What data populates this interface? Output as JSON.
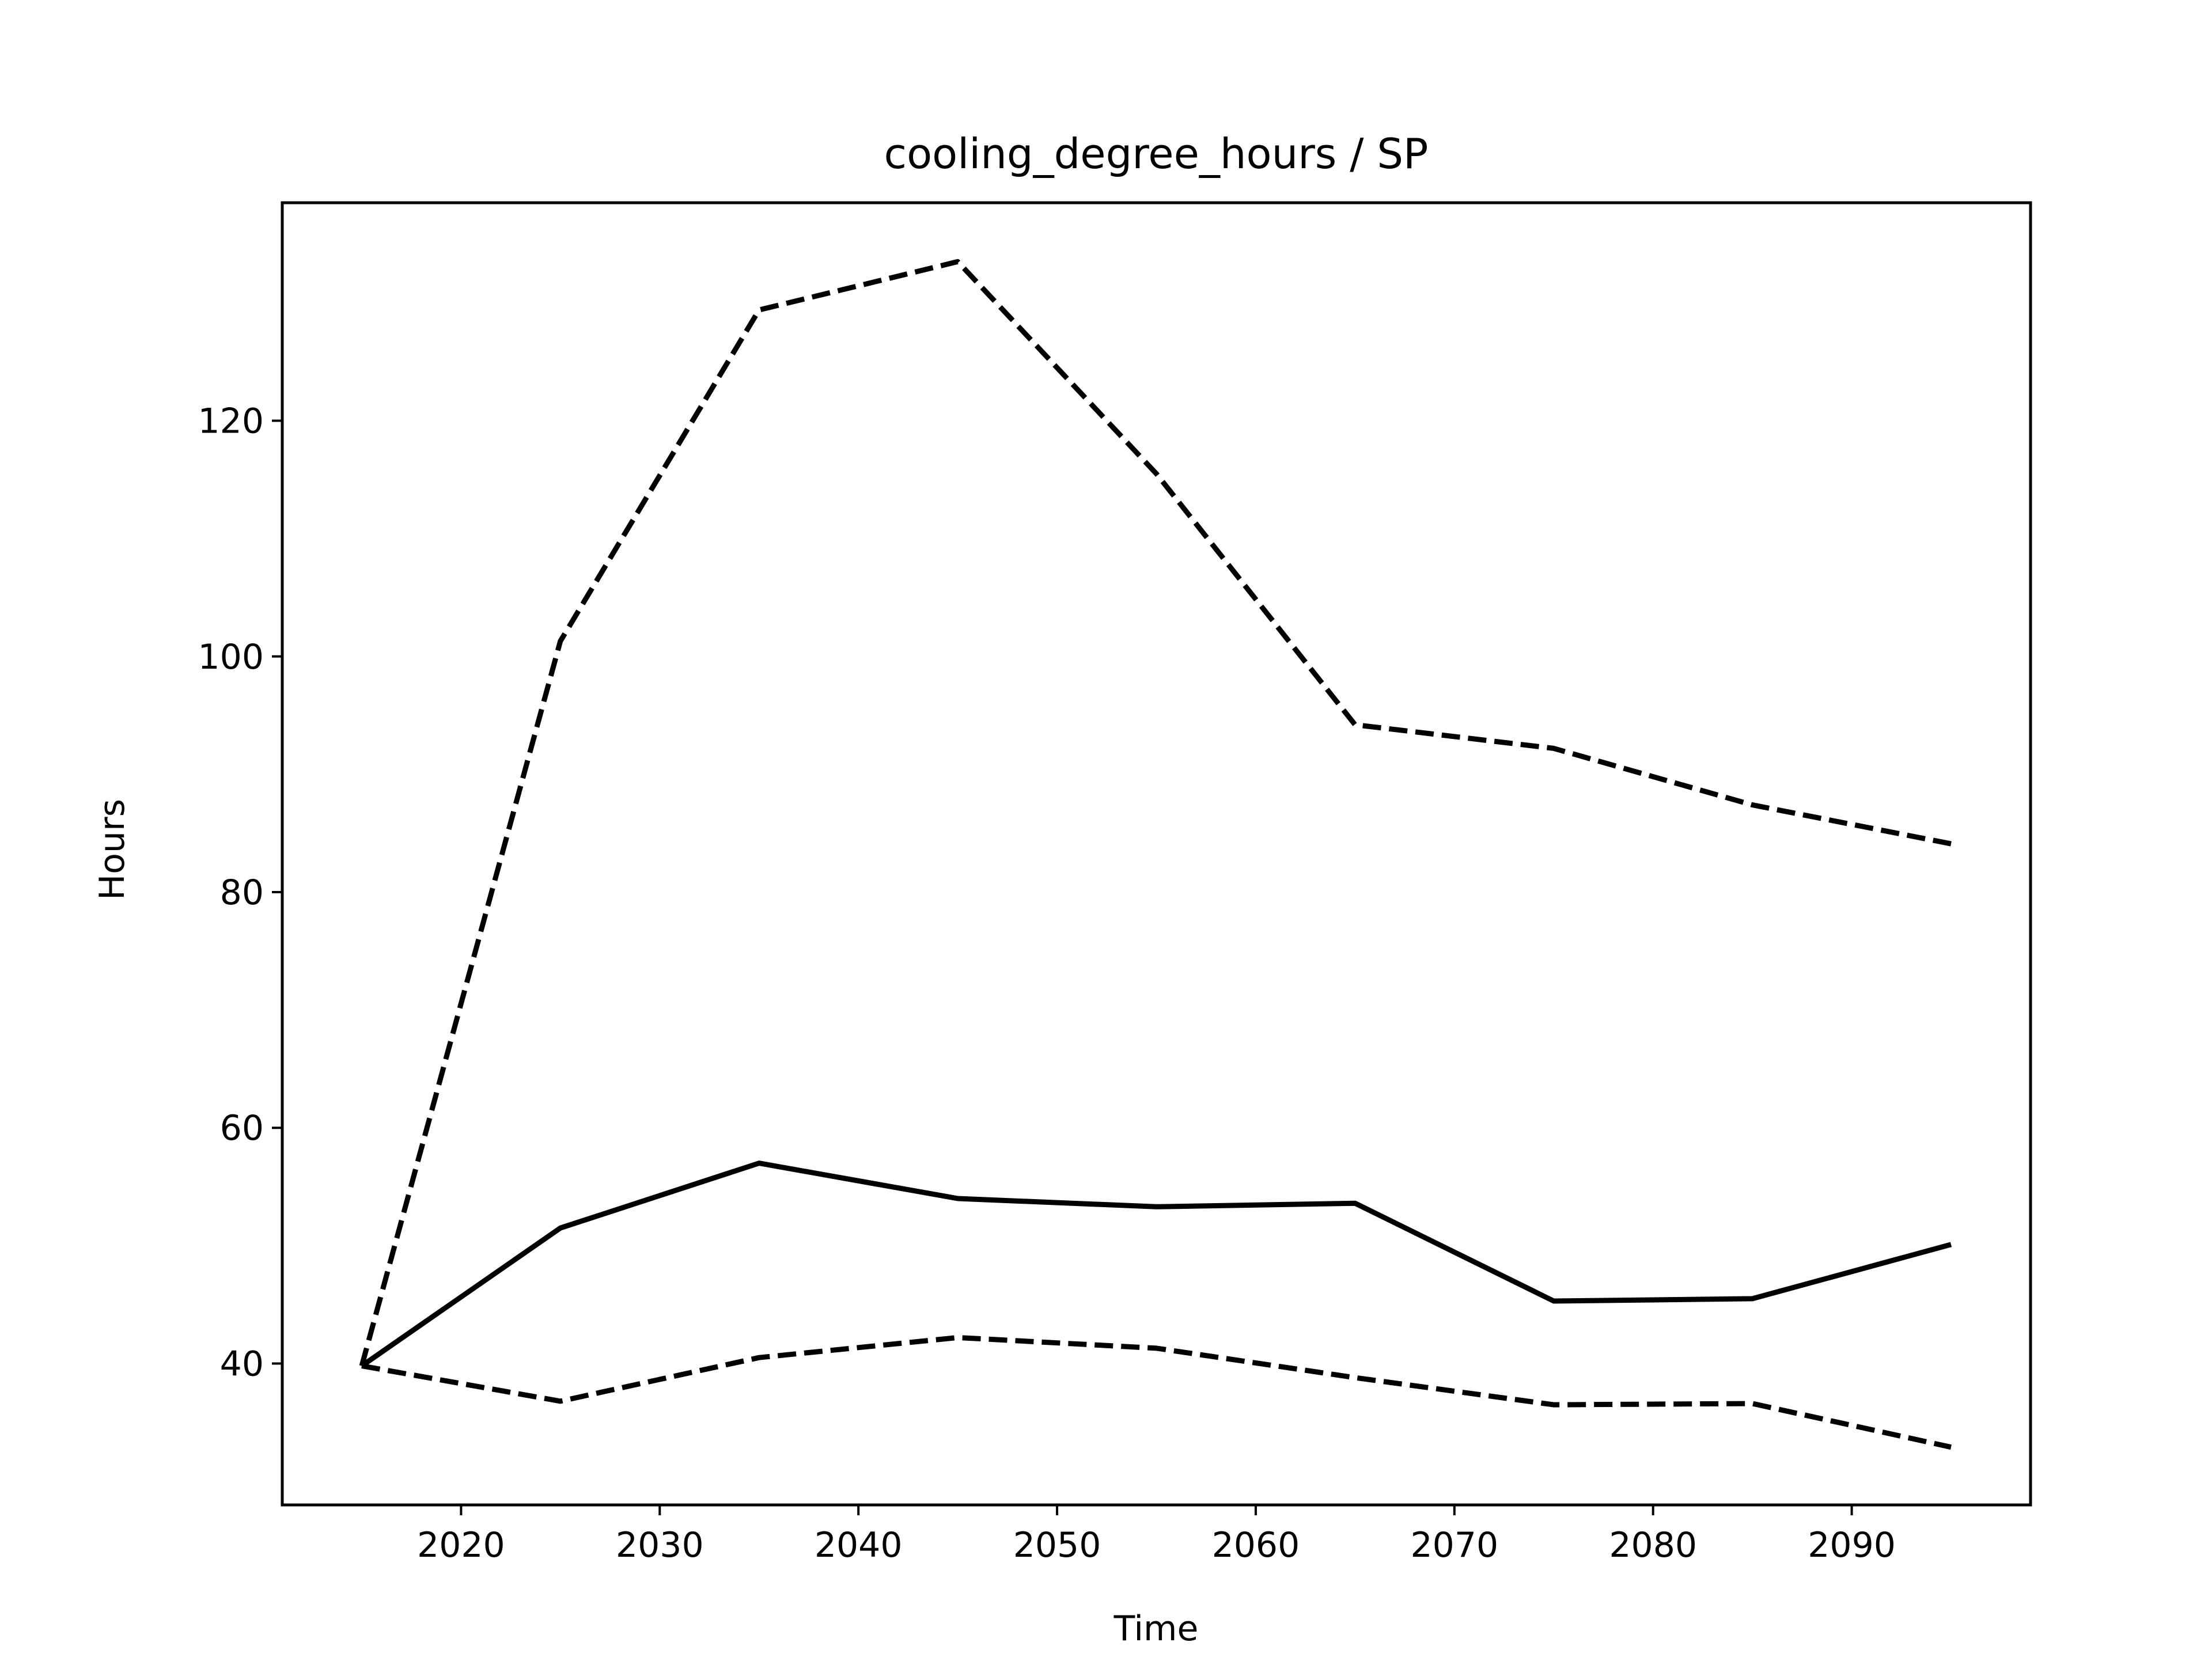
{
  "chart_data": {
    "type": "line",
    "title": "cooling_degree_hours / SP",
    "xlabel": "Time",
    "ylabel": "Hours",
    "xlim": [
      2011,
      2099
    ],
    "ylim": [
      28,
      138.5
    ],
    "xticks": [
      2020,
      2030,
      2040,
      2050,
      2060,
      2070,
      2080,
      2090
    ],
    "yticks": [
      40,
      60,
      80,
      100,
      120
    ],
    "grid": false,
    "x": [
      2015,
      2025,
      2035,
      2045,
      2055,
      2065,
      2075,
      2085,
      2095
    ],
    "series": [
      {
        "style": "solid",
        "color": "#000000",
        "values": [
          39.8,
          51.5,
          57.0,
          54.0,
          53.3,
          53.6,
          45.3,
          45.5,
          50.1
        ]
      },
      {
        "style": "dashed",
        "color": "#000000",
        "values": [
          39.8,
          101.3,
          129.4,
          133.5,
          115.5,
          94.2,
          92.2,
          87.4,
          84.1
        ]
      },
      {
        "style": "dashed",
        "color": "#000000",
        "values": [
          39.8,
          36.8,
          40.5,
          42.2,
          41.3,
          38.8,
          36.5,
          36.6,
          32.9
        ]
      }
    ]
  }
}
